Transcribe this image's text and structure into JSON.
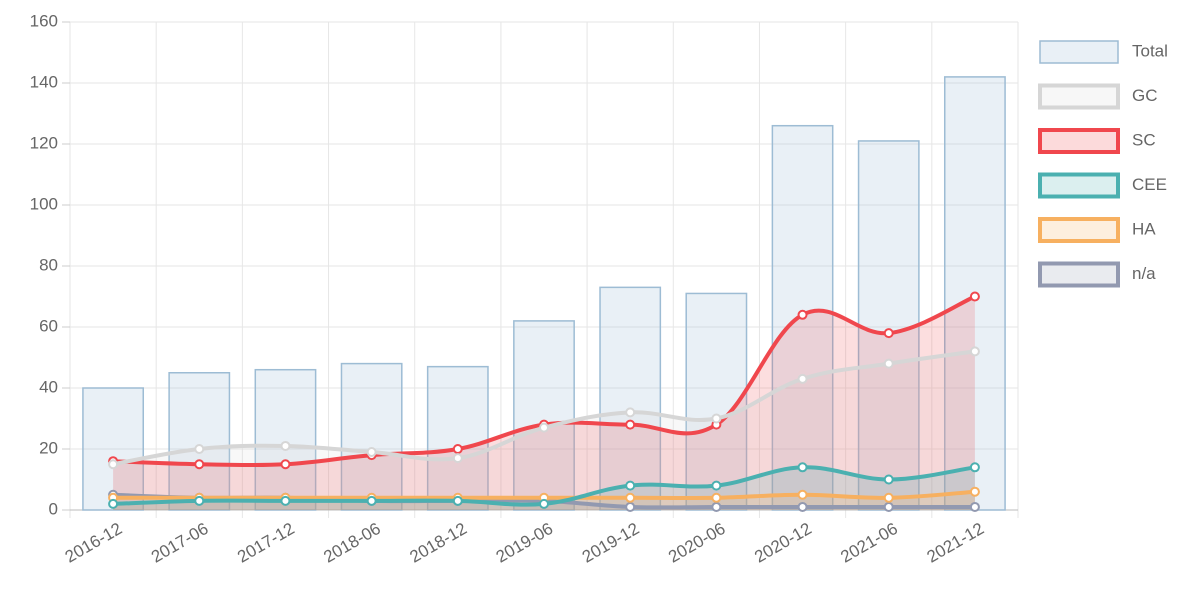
{
  "chart_data": {
    "type": "bar",
    "categories": [
      "2016-12",
      "2017-06",
      "2017-12",
      "2018-06",
      "2018-12",
      "2019-06",
      "2019-12",
      "2020-06",
      "2020-12",
      "2021-06",
      "2021-12"
    ],
    "series": [
      {
        "name": "Total",
        "type": "bar",
        "color": "#9dbcd4",
        "values": [
          40,
          45,
          46,
          48,
          47,
          62,
          73,
          71,
          126,
          121,
          142
        ]
      },
      {
        "name": "GC",
        "type": "line",
        "color": "#d6d6d6",
        "values": [
          15,
          20,
          21,
          19,
          17,
          27,
          32,
          30,
          43,
          48,
          52
        ]
      },
      {
        "name": "SC",
        "type": "line",
        "color": "#f0474d",
        "values": [
          16,
          15,
          15,
          18,
          20,
          28,
          28,
          28,
          64,
          58,
          70
        ]
      },
      {
        "name": "CEE",
        "type": "line",
        "color": "#4bb0b0",
        "values": [
          2,
          3,
          3,
          3,
          3,
          2,
          8,
          8,
          14,
          10,
          14
        ]
      },
      {
        "name": "HA",
        "type": "line",
        "color": "#f7b060",
        "values": [
          4,
          4,
          4,
          4,
          4,
          4,
          4,
          4,
          5,
          4,
          6
        ]
      },
      {
        "name": "n/a",
        "type": "line",
        "color": "#9299b0",
        "values": [
          5,
          4,
          4,
          3,
          3,
          3,
          1,
          1,
          1,
          1,
          1
        ]
      }
    ],
    "ylim": [
      0,
      160
    ],
    "yticks": [
      0,
      20,
      40,
      60,
      80,
      100,
      120,
      140,
      160
    ],
    "grid": true,
    "legend": "right"
  }
}
